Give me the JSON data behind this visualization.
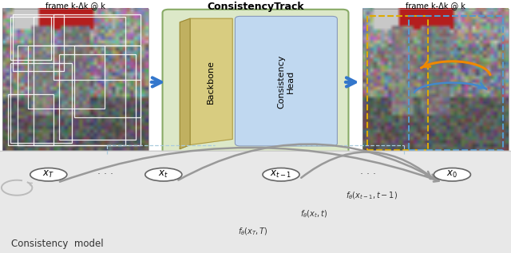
{
  "title_top": "ConsistencyTrack",
  "label_left": "frame k-Δk @ k",
  "label_right": "frame k-Δk @ k",
  "backbone_text": "Backbone",
  "head_text": "Consistency\nHead",
  "consistency_model_label": "Consistency  model",
  "node_labels": [
    "$x_T$",
    "$x_t$",
    "$x_{t-1}$",
    "$x_0$"
  ],
  "arrow_labels": [
    "$f_{\\theta}(x_{t-1},t-1)$",
    "$f_{\\theta}(x_t,t)$",
    "$f_{\\theta}(x_T,T)$"
  ],
  "bg_gray": "#e8e8e8",
  "node_edge": "#666666",
  "arrow_gray": "#999999",
  "box_green_bg": "#dce8c8",
  "box_green_edge": "#88aa66",
  "backbone_yellow": "#d8cc80",
  "backbone_dark": "#c0b060",
  "head_blue": "#c0d8f0",
  "head_edge": "#8899bb",
  "blue_arrow": "#3377cc",
  "orange_arrow": "#ee8800",
  "dashed_blue": "#aaccdd",
  "refresh_gray": "#bbbbbb",
  "label_minus": "k-Δk"
}
